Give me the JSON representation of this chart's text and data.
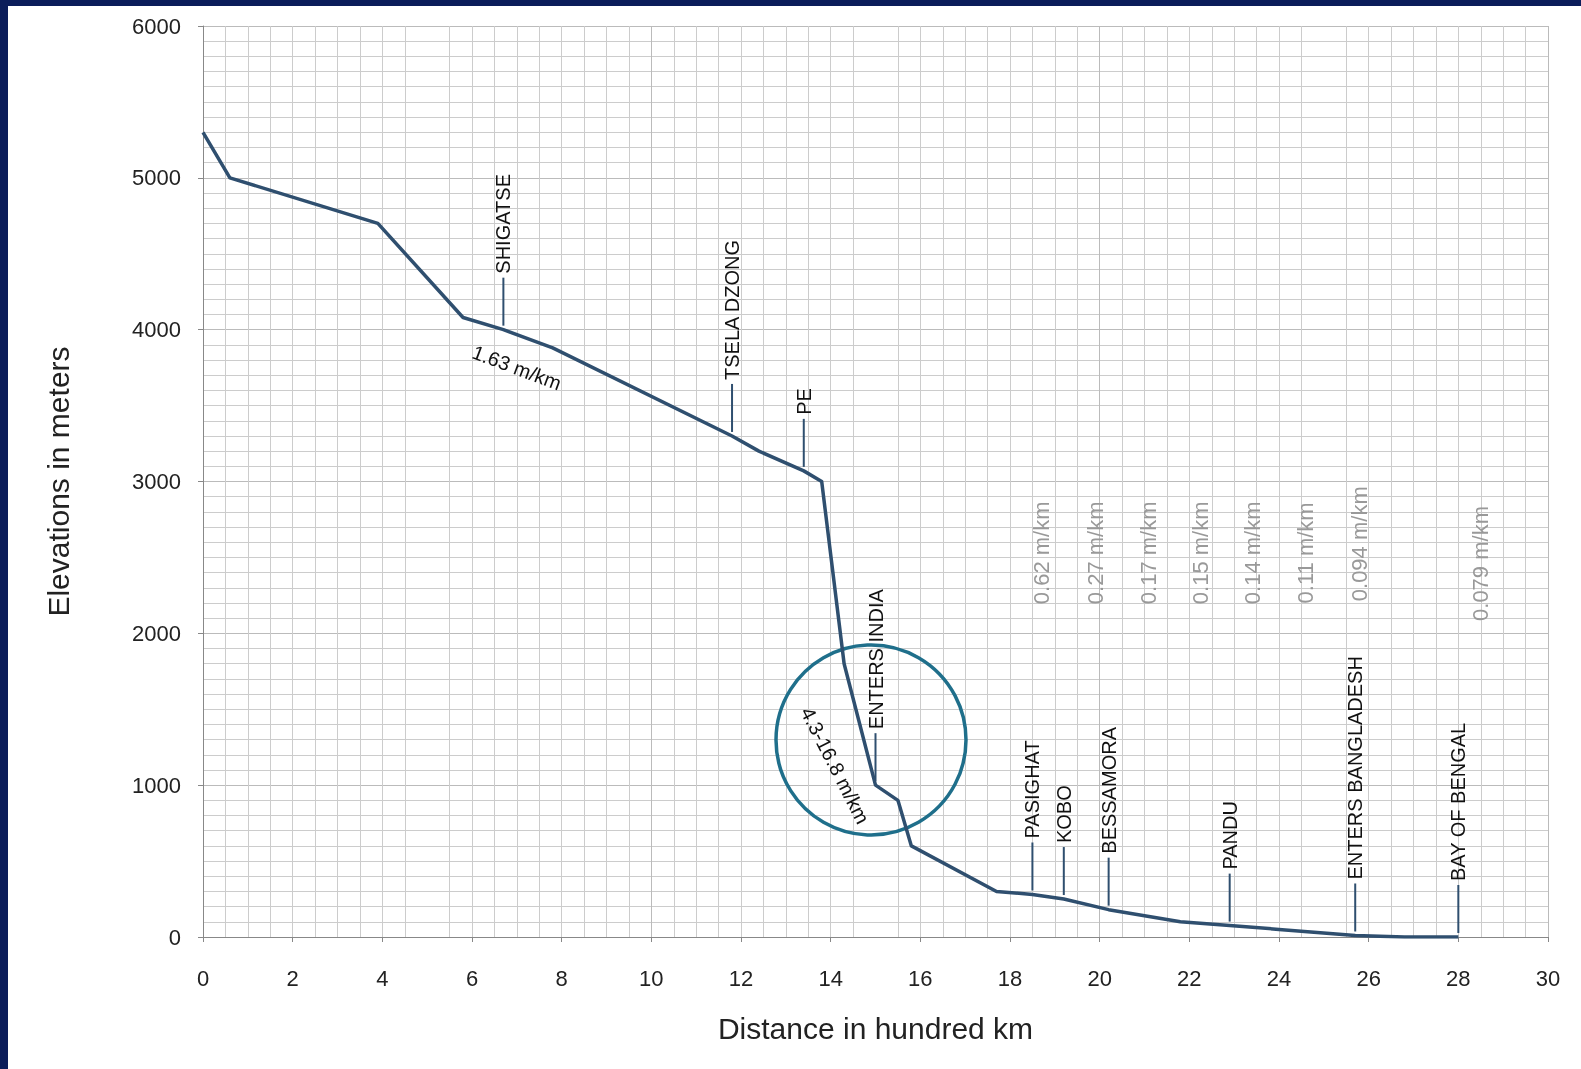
{
  "chart_data": {
    "type": "line",
    "xlabel": "Distance in hundred km",
    "ylabel": "Elevations in meters",
    "x": [
      0,
      0.6,
      3.9,
      5.8,
      6.7,
      7.8,
      11.8,
      12.4,
      13.4,
      13.8,
      14.3,
      15.0,
      15.5,
      15.8,
      17.7,
      18.5,
      19.2,
      20.2,
      21.8,
      22.9,
      24,
      25.7,
      26.8,
      28
    ],
    "series": [
      {
        "color": "#2f4f6f",
        "values": [
          5300,
          5000,
          4700,
          4080,
          4000,
          3880,
          3300,
          3200,
          3070,
          3000,
          1800,
          1000,
          900,
          600,
          300,
          280,
          250,
          180,
          100,
          75,
          50,
          10,
          0,
          0
        ]
      }
    ],
    "xlim": [
      0,
      30
    ],
    "xticks": [
      0,
      2,
      4,
      6,
      8,
      10,
      12,
      14,
      16,
      18,
      20,
      22,
      24,
      26,
      28,
      30
    ],
    "ylim": [
      0,
      6000
    ],
    "yticks": [
      0,
      1000,
      2000,
      3000,
      4000,
      5000,
      6000
    ],
    "grid": true,
    "marker": "none",
    "line_style": "solid",
    "annotations": [
      {
        "text": "SHIGATSE",
        "x": 6.7,
        "y": 4000
      },
      {
        "text": "TSELA DZONG",
        "x": 11.8,
        "y": 3300
      },
      {
        "text": "PE",
        "x": 13.4,
        "y": 3070
      },
      {
        "text": "ENTERS INDIA",
        "x": 15.0,
        "y": 1000
      },
      {
        "text": "PASIGHAT",
        "x": 18.5,
        "y": 280
      },
      {
        "text": "KOBO",
        "x": 19.2,
        "y": 250
      },
      {
        "text": "BESSAMORA",
        "x": 20.2,
        "y": 180
      },
      {
        "text": "PANDU",
        "x": 22.9,
        "y": 75
      },
      {
        "text": "ENTERS BANGLADESH",
        "x": 25.7,
        "y": 10
      },
      {
        "text": "BAY OF BENGAL",
        "x": 28,
        "y": 0
      },
      "1.63 m/km",
      "4.3-16.8 m/km",
      "0.62 m/km",
      "0.27 m/km",
      "0.17 m/km",
      "0.15 m/km",
      "0.14 m/km",
      "0.11 m/km",
      "0.094 m/km",
      "0.079 m/km"
    ]
  }
}
